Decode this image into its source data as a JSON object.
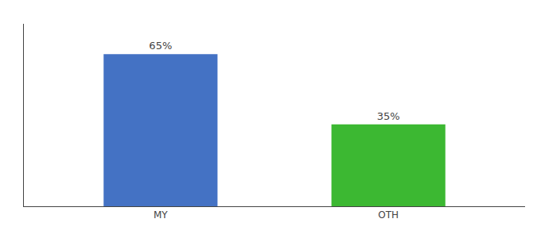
{
  "chart_data": {
    "type": "bar",
    "categories": [
      "MY",
      "OTH"
    ],
    "values": [
      65,
      35
    ],
    "value_labels": [
      "65%",
      "35%"
    ],
    "colors": [
      "#4472c4",
      "#3cb832"
    ],
    "data_labels": true,
    "ylim": [
      0,
      78
    ],
    "grid": false,
    "tick_labels": "x"
  }
}
